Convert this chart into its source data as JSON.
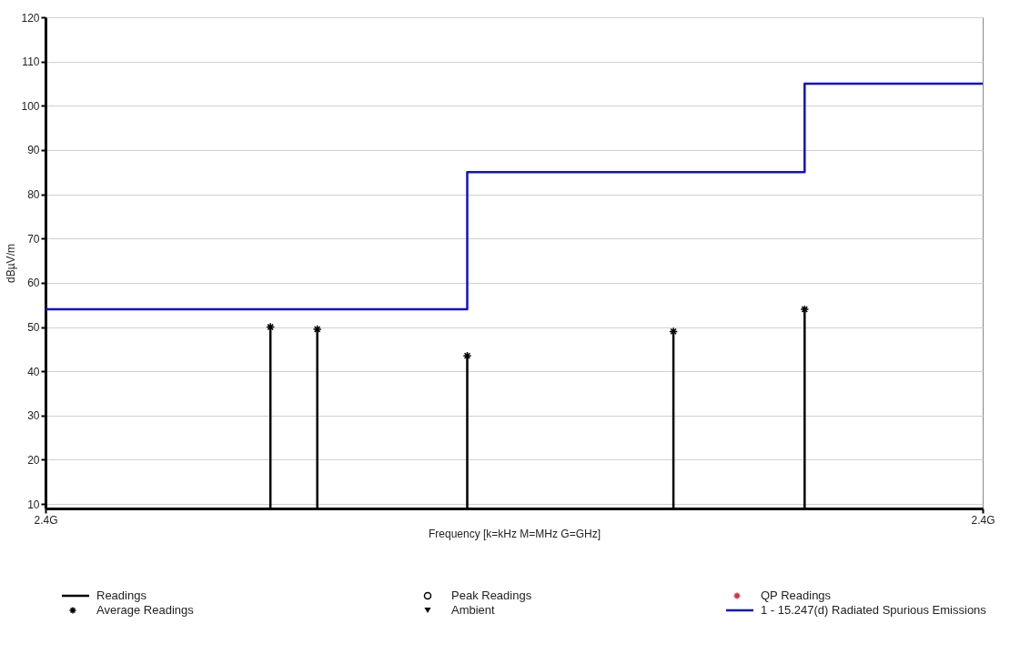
{
  "chart_data": {
    "type": "step",
    "xlabel": "Frequency [k=kHz M=MHz G=GHz]",
    "ylabel": "dBµV/m",
    "categories": [
      "2.4G",
      null,
      null,
      null,
      null,
      null,
      null,
      null,
      null,
      null,
      null,
      null,
      null,
      null,
      null,
      null,
      null,
      null,
      null,
      null,
      null,
      null,
      null,
      null,
      null,
      null,
      null,
      null,
      null,
      null,
      null,
      null,
      null,
      null,
      null,
      null,
      null,
      null,
      null,
      null,
      null,
      null,
      null,
      null,
      null,
      null,
      null,
      null,
      null,
      null,
      null,
      null,
      null,
      null,
      null,
      null,
      null,
      null,
      null,
      null,
      null,
      null,
      null,
      null,
      null,
      null,
      null,
      null,
      null,
      null,
      null,
      null,
      null,
      null,
      null,
      null,
      null,
      null,
      null,
      null,
      null,
      null,
      null,
      null,
      null,
      null,
      null,
      null,
      null,
      null,
      null,
      null,
      null,
      null,
      null,
      null,
      null,
      null,
      null,
      null,
      "2.4G"
    ],
    "ylim": [
      9,
      120
    ],
    "yticks": [
      10,
      20,
      30,
      40,
      50,
      60,
      70,
      80,
      90,
      100,
      110,
      120
    ],
    "grid": "y",
    "legend": "bottom",
    "series": [
      {
        "name": "Readings",
        "type": "bar",
        "color": "#000000",
        "values": [
          null,
          null,
          null,
          null,
          null,
          null,
          null,
          null,
          null,
          null,
          null,
          null,
          null,
          null,
          null,
          null,
          null,
          null,
          null,
          null,
          null,
          null,
          null,
          null,
          50,
          null,
          null,
          null,
          null,
          49.5,
          null,
          null,
          null,
          null,
          null,
          null,
          null,
          null,
          null,
          null,
          null,
          null,
          null,
          null,
          null,
          43.5,
          null,
          null,
          null,
          null,
          null,
          null,
          null,
          null,
          null,
          null,
          null,
          null,
          null,
          null,
          null,
          null,
          null,
          null,
          null,
          null,
          null,
          49,
          null,
          null,
          null,
          null,
          null,
          null,
          null,
          null,
          null,
          null,
          null,
          null,
          null,
          54,
          null,
          null,
          null,
          null,
          null,
          null,
          null,
          null,
          null,
          null,
          null,
          null,
          null,
          null,
          null,
          null,
          null,
          null,
          null
        ]
      },
      {
        "name": "Average Readings",
        "type": "scatter",
        "marker": "cross",
        "color": "#000000",
        "values": [
          null,
          null,
          null,
          null,
          null,
          null,
          null,
          null,
          null,
          null,
          null,
          null,
          null,
          null,
          null,
          null,
          null,
          null,
          null,
          null,
          null,
          null,
          null,
          null,
          50,
          null,
          null,
          null,
          null,
          49.5,
          null,
          null,
          null,
          null,
          null,
          null,
          null,
          null,
          null,
          null,
          null,
          null,
          null,
          null,
          null,
          43.5,
          null,
          null,
          null,
          null,
          null,
          null,
          null,
          null,
          null,
          null,
          null,
          null,
          null,
          null,
          null,
          null,
          null,
          null,
          null,
          null,
          null,
          49,
          null,
          null,
          null,
          null,
          null,
          null,
          null,
          null,
          null,
          null,
          null,
          null,
          null,
          54,
          null,
          null,
          null,
          null,
          null,
          null,
          null,
          null,
          null,
          null,
          null,
          null,
          null,
          null,
          null,
          null,
          null,
          null,
          null
        ]
      },
      {
        "name": "Peak Readings",
        "type": "scatter",
        "marker": "circle",
        "color": "#000000",
        "values": [
          null,
          null,
          null,
          null,
          null,
          null,
          null,
          null,
          null,
          null,
          null,
          null,
          null,
          null,
          null,
          null,
          null,
          null,
          null,
          null,
          null,
          null,
          null,
          null,
          null,
          null,
          null,
          null,
          null,
          null,
          null,
          null,
          null,
          null,
          null,
          null,
          null,
          null,
          null,
          null,
          null,
          null,
          null,
          null,
          null,
          null,
          null,
          null,
          null,
          null,
          null,
          null,
          null,
          null,
          null,
          null,
          null,
          null,
          null,
          null,
          null,
          null,
          null,
          null,
          null,
          null,
          null,
          null,
          null,
          null,
          null,
          null,
          null,
          null,
          null,
          null,
          null,
          null,
          null,
          null,
          null,
          null,
          null,
          null,
          null,
          null,
          null,
          null,
          null,
          null,
          null,
          null,
          null,
          null,
          null,
          null,
          null,
          null,
          null,
          null,
          null
        ]
      },
      {
        "name": "Ambient",
        "type": "scatter",
        "marker": "triangle",
        "color": "#000000",
        "values": [
          null,
          null,
          null,
          null,
          null,
          null,
          null,
          null,
          null,
          null,
          null,
          null,
          null,
          null,
          null,
          null,
          null,
          null,
          null,
          null,
          null,
          null,
          null,
          null,
          null,
          null,
          null,
          null,
          null,
          null,
          null,
          null,
          null,
          null,
          null,
          null,
          null,
          null,
          null,
          null,
          null,
          null,
          null,
          null,
          null,
          null,
          null,
          null,
          null,
          null,
          null,
          null,
          null,
          null,
          null,
          null,
          null,
          null,
          null,
          null,
          null,
          null,
          null,
          null,
          null,
          null,
          null,
          null,
          null,
          null,
          null,
          null,
          null,
          null,
          null,
          null,
          null,
          null,
          null,
          null,
          null,
          null,
          null,
          null,
          null,
          null,
          null,
          null,
          null,
          null,
          null,
          null,
          null,
          null,
          null,
          null,
          null,
          null,
          null,
          null,
          null
        ]
      },
      {
        "name": "QP Readings",
        "type": "scatter",
        "marker": "cross",
        "color": "#d03040",
        "values": [
          null,
          null,
          null,
          null,
          null,
          null,
          null,
          null,
          null,
          null,
          null,
          null,
          null,
          null,
          null,
          null,
          null,
          null,
          null,
          null,
          null,
          null,
          null,
          null,
          null,
          null,
          null,
          null,
          null,
          null,
          null,
          null,
          null,
          null,
          null,
          null,
          null,
          null,
          null,
          null,
          null,
          null,
          null,
          null,
          null,
          null,
          null,
          null,
          null,
          null,
          null,
          null,
          null,
          null,
          null,
          null,
          null,
          null,
          null,
          null,
          null,
          null,
          null,
          null,
          null,
          null,
          null,
          null,
          null,
          null,
          null,
          null,
          null,
          null,
          null,
          null,
          null,
          null,
          null,
          null,
          null,
          null,
          null,
          null,
          null,
          null,
          null,
          null,
          null,
          null,
          null,
          null,
          null,
          null,
          null,
          null,
          null,
          null,
          null,
          null,
          null
        ]
      },
      {
        "name": "1 - 15.247(d) Radiated Spurious Emissions",
        "color": "#1010d0",
        "values": [
          54,
          54,
          54,
          54,
          54,
          54,
          54,
          54,
          54,
          54,
          54,
          54,
          54,
          54,
          54,
          54,
          54,
          54,
          54,
          54,
          54,
          54,
          54,
          54,
          54,
          54,
          54,
          54,
          54,
          54,
          54,
          54,
          54,
          54,
          54,
          54,
          54,
          54,
          54,
          54,
          54,
          54,
          54,
          54,
          54,
          85,
          85,
          85,
          85,
          85,
          85,
          85,
          85,
          85,
          85,
          85,
          85,
          85,
          85,
          85,
          85,
          85,
          85,
          85,
          85,
          85,
          85,
          85,
          85,
          85,
          85,
          85,
          85,
          85,
          85,
          85,
          85,
          85,
          85,
          85,
          85,
          105,
          105,
          105,
          105,
          105,
          105,
          105,
          105,
          105,
          105,
          105,
          105,
          105,
          105,
          105,
          105,
          105,
          105,
          105,
          105
        ]
      }
    ]
  }
}
